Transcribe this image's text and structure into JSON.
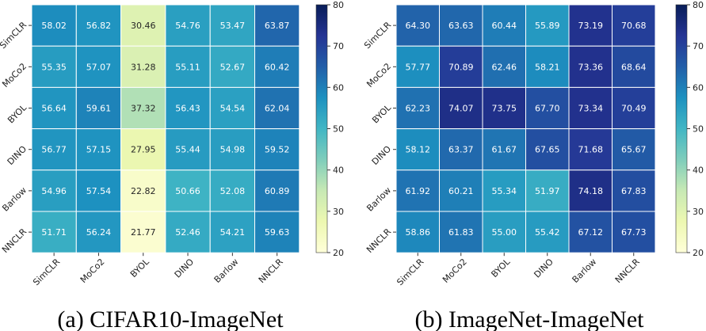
{
  "chart_data": [
    {
      "type": "heatmap",
      "caption": "(a) CIFAR10-ImageNet",
      "rows": [
        "SimCLR",
        "MoCo2",
        "BYOL",
        "DINO",
        "Barlow",
        "NNCLR"
      ],
      "cols": [
        "SimCLR",
        "MoCo2",
        "BYOL",
        "DINO",
        "Barlow",
        "NNCLR"
      ],
      "values": [
        [
          "58.02",
          "56.82",
          "30.46",
          "54.76",
          "53.47",
          "63.87"
        ],
        [
          "55.35",
          "57.07",
          "31.28",
          "55.11",
          "52.67",
          "60.42"
        ],
        [
          "56.64",
          "59.61",
          "37.32",
          "56.43",
          "54.54",
          "62.04"
        ],
        [
          "56.77",
          "57.15",
          "27.95",
          "55.44",
          "54.98",
          "59.52"
        ],
        [
          "54.96",
          "57.54",
          "22.82",
          "50.66",
          "52.08",
          "60.89"
        ],
        [
          "51.71",
          "56.24",
          "21.77",
          "52.46",
          "54.21",
          "59.63"
        ]
      ],
      "colorbar": {
        "min": 20,
        "max": 80,
        "ticks": [
          "20",
          "30",
          "40",
          "50",
          "60",
          "70",
          "80"
        ]
      },
      "colormap": "YlGnBu"
    },
    {
      "type": "heatmap",
      "caption": "(b) ImageNet-ImageNet",
      "rows": [
        "SimCLR",
        "MoCo2",
        "BYOL",
        "DINO",
        "Barlow",
        "NNCLR"
      ],
      "cols": [
        "SimCLR",
        "MoCo2",
        "BYOL",
        "DINO",
        "Barlow",
        "NNCLR"
      ],
      "values": [
        [
          "64.30",
          "63.63",
          "60.44",
          "55.89",
          "73.19",
          "70.68"
        ],
        [
          "57.77",
          "70.89",
          "62.46",
          "58.21",
          "73.36",
          "68.64"
        ],
        [
          "62.23",
          "74.07",
          "73.75",
          "67.70",
          "73.34",
          "70.49"
        ],
        [
          "58.12",
          "63.37",
          "61.67",
          "67.65",
          "71.68",
          "65.67"
        ],
        [
          "61.92",
          "60.21",
          "55.34",
          "51.97",
          "74.18",
          "67.83"
        ],
        [
          "58.86",
          "61.83",
          "55.00",
          "55.42",
          "67.12",
          "67.73"
        ]
      ],
      "colorbar": {
        "min": 20,
        "max": 80,
        "ticks": [
          "20",
          "30",
          "40",
          "50",
          "60",
          "70",
          "80"
        ]
      },
      "colormap": "YlGnBu"
    }
  ]
}
